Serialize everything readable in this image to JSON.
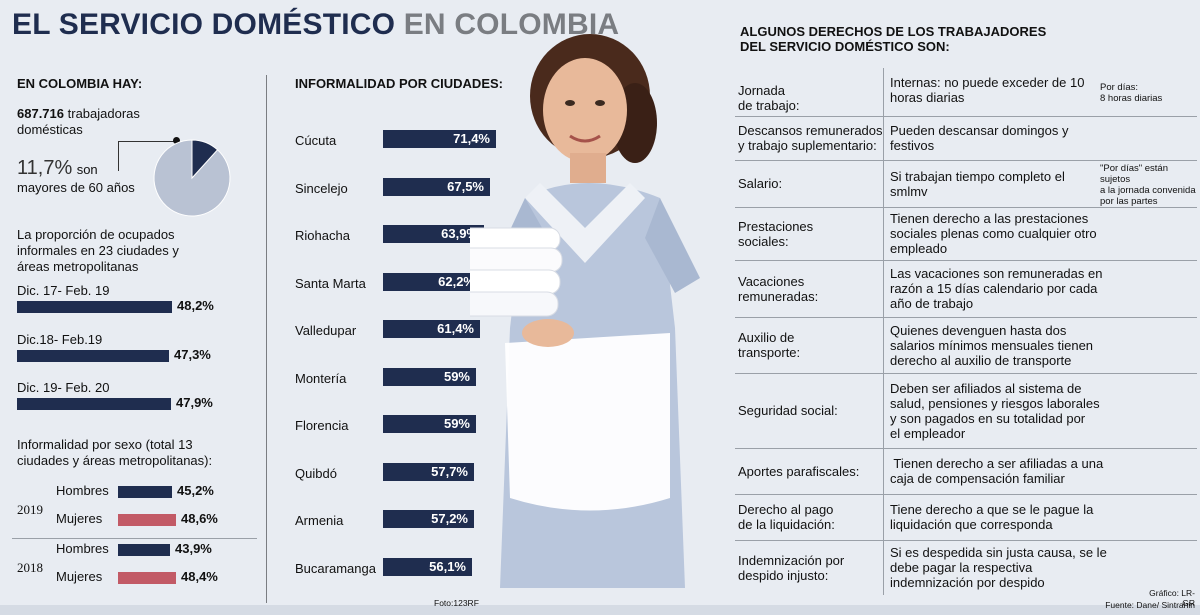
{
  "title": {
    "part1": "EL SERVICIO DOMÉSTICO",
    "part2": "EN COLOMBIA"
  },
  "left": {
    "header": "EN COLOMBIA HAY:",
    "workers_number": "687.716",
    "workers_text1": "trabajadoras",
    "workers_text2": "domésticas",
    "pct_older": "11,7%",
    "pct_older_text1": "son",
    "pct_older_text2": "mayores de 60 años",
    "informal_title1": "La proporción de ocupados",
    "informal_title2": "informales en 23 ciudades y",
    "informal_title3": "áreas metropolitanas",
    "sex_title1": "Informalidad por sexo (total 13",
    "sex_title2": "ciudades y áreas metropolitanas):"
  },
  "cities_header": "INFORMALIDAD POR CIUDADES:",
  "photo_credit": "Foto:123RF",
  "rights": {
    "header1": "ALGUNOS DERECHOS DE LOS TRABAJADORES",
    "header2": "DEL SERVICIO DOMÉSTICO SON:",
    "rows": [
      {
        "label": [
          "Jornada",
          "de trabajo:"
        ],
        "text": [
          "Internas: no puede exceder de 10",
          "horas diarias"
        ],
        "note": [
          "Por días:",
          "8 horas diarias"
        ]
      },
      {
        "label": [
          "Descansos remunerados",
          "y trabajo suplementario:"
        ],
        "text": [
          "Pueden descansar domingos y",
          "festivos"
        ],
        "note": []
      },
      {
        "label": [
          "Salario:"
        ],
        "text": [
          "Si trabajan tiempo completo el",
          "smlmv"
        ],
        "note": [
          "\"Por días\" están sujetos",
          "a la jornada convenida",
          "por las partes"
        ]
      },
      {
        "label": [
          "Prestaciones",
          "sociales:"
        ],
        "text": [
          "Tienen derecho a las prestaciones",
          "sociales plenas como cualquier otro",
          "empleado"
        ],
        "note": []
      },
      {
        "label": [
          "Vacaciones",
          "remuneradas:"
        ],
        "text": [
          "Las vacaciones son remuneradas en",
          "razón a 15 días calendario por cada",
          "año de trabajo"
        ],
        "note": []
      },
      {
        "label": [
          "Auxilio de",
          "transporte:"
        ],
        "text": [
          "Quienes devenguen hasta dos",
          "salarios mínimos mensuales tienen",
          "derecho al auxilio de transporte"
        ],
        "note": []
      },
      {
        "label": [
          "Seguridad social:"
        ],
        "text": [
          "Deben ser afiliados al sistema de",
          "salud, pensiones y riesgos laborales",
          "y son pagados en su totalidad por",
          "el empleador"
        ],
        "note": []
      },
      {
        "label": [
          "Aportes parafiscales:"
        ],
        "text": [
          " Tienen derecho a ser afiliadas a una",
          "caja de compensación familiar"
        ],
        "note": []
      },
      {
        "label": [
          "Derecho al pago",
          "de la liquidación:"
        ],
        "text": [
          "Tiene derecho a que se le pague la",
          "liquidación que corresponda"
        ],
        "note": []
      },
      {
        "label": [
          "Indemnización por",
          "despido injusto:"
        ],
        "text": [
          "Si es despedida sin justa causa, se le",
          "debe pagar la respectiva",
          "indemnización por despido"
        ],
        "note": []
      }
    ]
  },
  "footer": {
    "grafico": "Gráfico: LR-GR",
    "fuente": "Fuente: Dane/ Sintrahin"
  },
  "chart_data": [
    {
      "type": "pie",
      "values": [
        11.7,
        88.3
      ],
      "colors": [
        "#1f2d4f",
        "#b9c2d3"
      ]
    },
    {
      "type": "bar",
      "categories": [
        "Dic. 17- Feb. 19",
        "Dic.18- Feb.19",
        "Dic. 19- Feb. 20"
      ],
      "values": [
        48.2,
        47.3,
        47.9
      ],
      "value_labels": [
        "48,2%",
        "47,3%",
        "47,9%"
      ]
    },
    {
      "type": "bar",
      "groups": [
        {
          "year": "2019",
          "items": [
            {
              "name": "Hombres",
              "value": 45.2,
              "label": "45,2%",
              "color": "#1f2d4f"
            },
            {
              "name": "Mujeres",
              "value": 48.6,
              "label": "48,6%",
              "color": "#c25a66"
            }
          ]
        },
        {
          "year": "2018",
          "items": [
            {
              "name": "Hombres",
              "value": 43.9,
              "label": "43,9%",
              "color": "#1f2d4f"
            },
            {
              "name": "Mujeres",
              "value": 48.4,
              "label": "48,4%",
              "color": "#c25a66"
            }
          ]
        }
      ]
    },
    {
      "type": "bar",
      "title": "INFORMALIDAD POR CIUDADES:",
      "categories": [
        "Cúcuta",
        "Sincelejo",
        "Riohacha",
        "Santa Marta",
        "Valledupar",
        "Montería",
        "Florencia",
        "Quibdó",
        "Armenia",
        "Bucaramanga"
      ],
      "values": [
        71.4,
        67.5,
        63.9,
        62.2,
        61.4,
        59,
        59,
        57.7,
        57.2,
        56.1
      ],
      "value_labels": [
        "71,4%",
        "67,5%",
        "63,9%",
        "62,2%",
        "61,4%",
        "59%",
        "59%",
        "57,7%",
        "57,2%",
        "56,1%"
      ]
    }
  ]
}
